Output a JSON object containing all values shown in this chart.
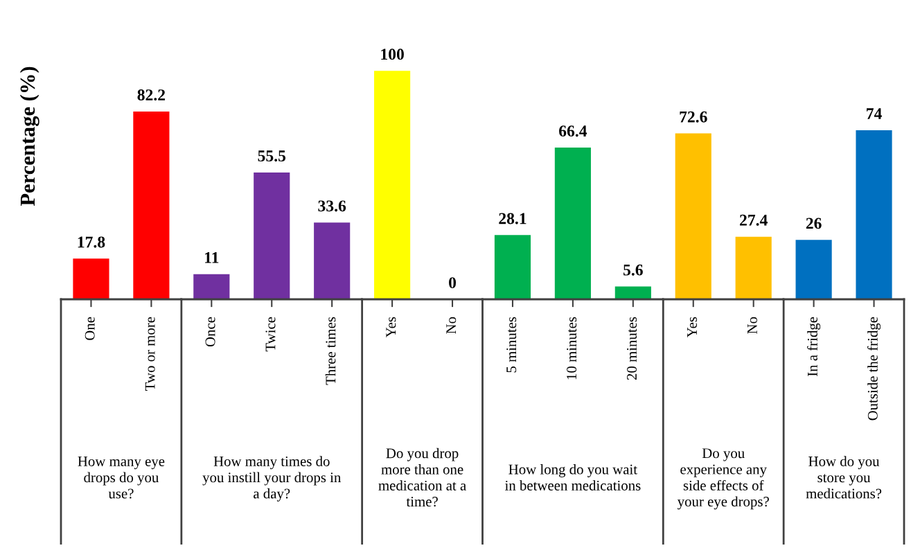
{
  "chart_data": [
    {
      "type": "bar",
      "ylabel": "Percentage (%)",
      "xlabel": "How many eye\ndrops do you\nuse?",
      "categories": [
        "One",
        "Two or more"
      ],
      "values": [
        17.8,
        82.2
      ],
      "colors": [
        "#ff0000",
        "#ff0000"
      ],
      "data_labels": true
    },
    {
      "type": "bar",
      "xlabel": "How many times do\nyou instill your drops in\na day?",
      "categories": [
        "Once",
        "Twice",
        "Three times"
      ],
      "values": [
        11,
        55.5,
        33.6
      ],
      "colors": [
        "#7030a0",
        "#7030a0",
        "#7030a0"
      ],
      "data_labels": true
    },
    {
      "type": "bar",
      "xlabel": "Do you drop\nmore than one\nmedication at a\ntime?",
      "categories": [
        "Yes",
        "No"
      ],
      "values": [
        100,
        0
      ],
      "colors": [
        "#ffff00",
        "#ffff00"
      ],
      "data_labels": true
    },
    {
      "type": "bar",
      "xlabel": "How long do you wait\nin between medications",
      "categories": [
        "5 minutes",
        "10 minutes",
        "20 minutes"
      ],
      "values": [
        28.1,
        66.4,
        5.6
      ],
      "colors": [
        "#00b050",
        "#00b050",
        "#00b050"
      ],
      "data_labels": true
    },
    {
      "type": "bar",
      "xlabel": "Do you\nexperience any\nside effects of\nyour eye drops?",
      "categories": [
        "Yes",
        "No"
      ],
      "values": [
        72.6,
        27.4
      ],
      "colors": [
        "#ffc000",
        "#ffc000"
      ],
      "data_labels": true
    },
    {
      "type": "bar",
      "xlabel": "How do you\nstore you\nmedications?",
      "categories": [
        "In a fridge",
        "Outside the fridge"
      ],
      "values": [
        26,
        74
      ],
      "colors": [
        "#0070c0",
        "#0070c0"
      ],
      "data_labels": true
    }
  ]
}
